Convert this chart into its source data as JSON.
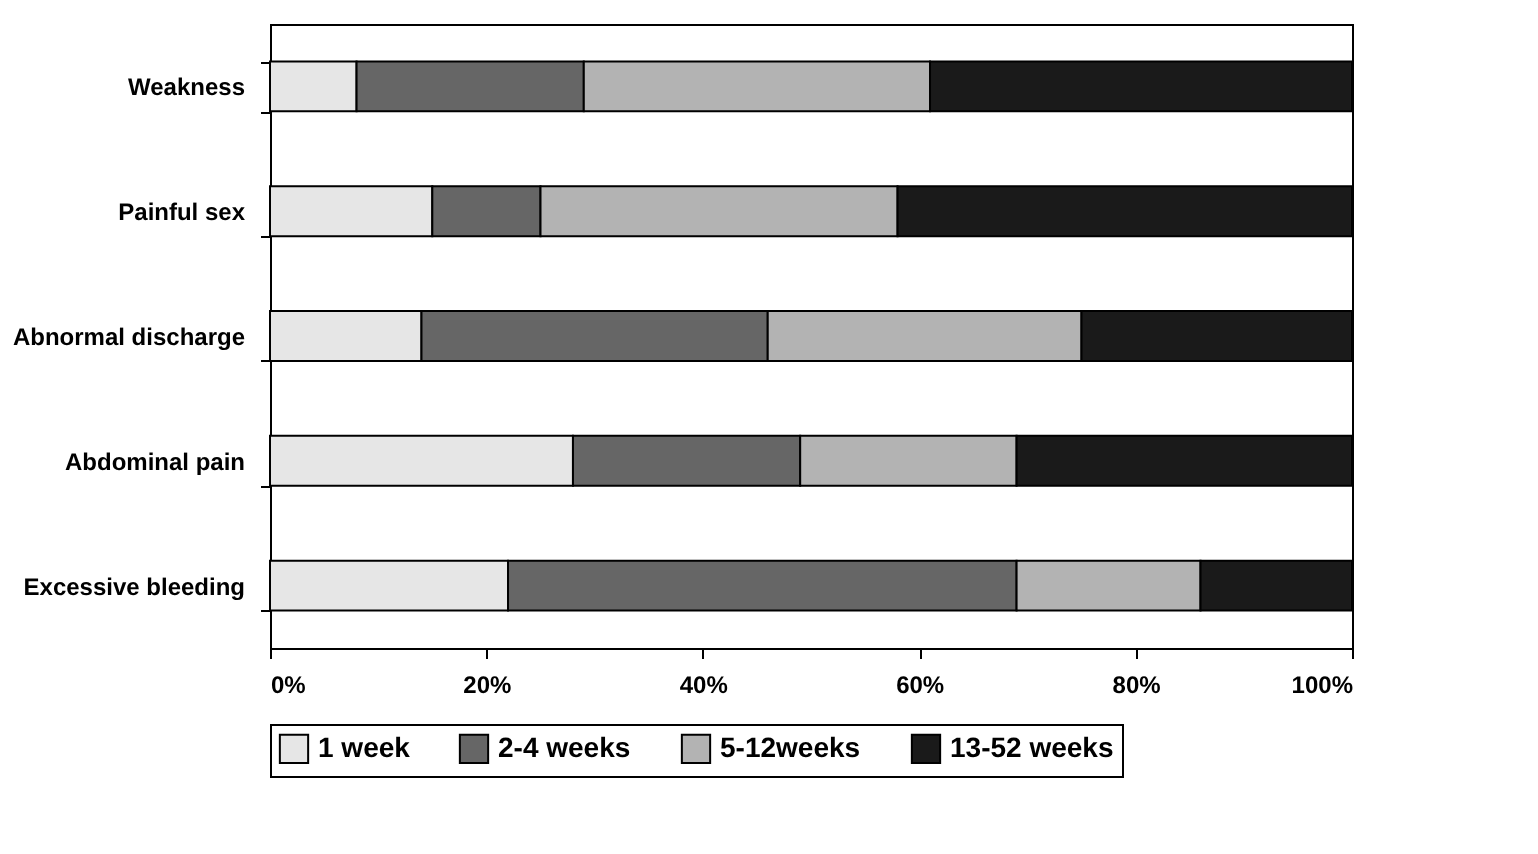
{
  "chart_data": {
    "type": "bar",
    "orientation": "horizontal",
    "stacked": true,
    "categories": [
      "Weakness",
      "Painful sex",
      "Abnormal discharge",
      "Abdominal pain",
      "Excessive bleeding"
    ],
    "series": [
      {
        "name": "1 week",
        "color": "#e6e6e6",
        "values": [
          8,
          15,
          14,
          28,
          22
        ]
      },
      {
        "name": "2-4 weeks",
        "color": "#666666",
        "values": [
          21,
          10,
          32,
          21,
          47
        ]
      },
      {
        "name": "5-12weeks",
        "color": "#b3b3b3",
        "values": [
          32,
          33,
          29,
          20,
          17
        ]
      },
      {
        "name": "13-52 weeks",
        "color": "#1a1a1a",
        "values": [
          39,
          42,
          25,
          31,
          14
        ]
      }
    ],
    "xlim": [
      0,
      100
    ],
    "xticks": [
      {
        "value": 0,
        "label": "0%"
      },
      {
        "value": 20,
        "label": "20%"
      },
      {
        "value": 40,
        "label": "40%"
      },
      {
        "value": 60,
        "label": "60%"
      },
      {
        "value": 80,
        "label": "80%"
      },
      {
        "value": 100,
        "label": "100%"
      }
    ],
    "grid": false,
    "legend": "bottom"
  }
}
